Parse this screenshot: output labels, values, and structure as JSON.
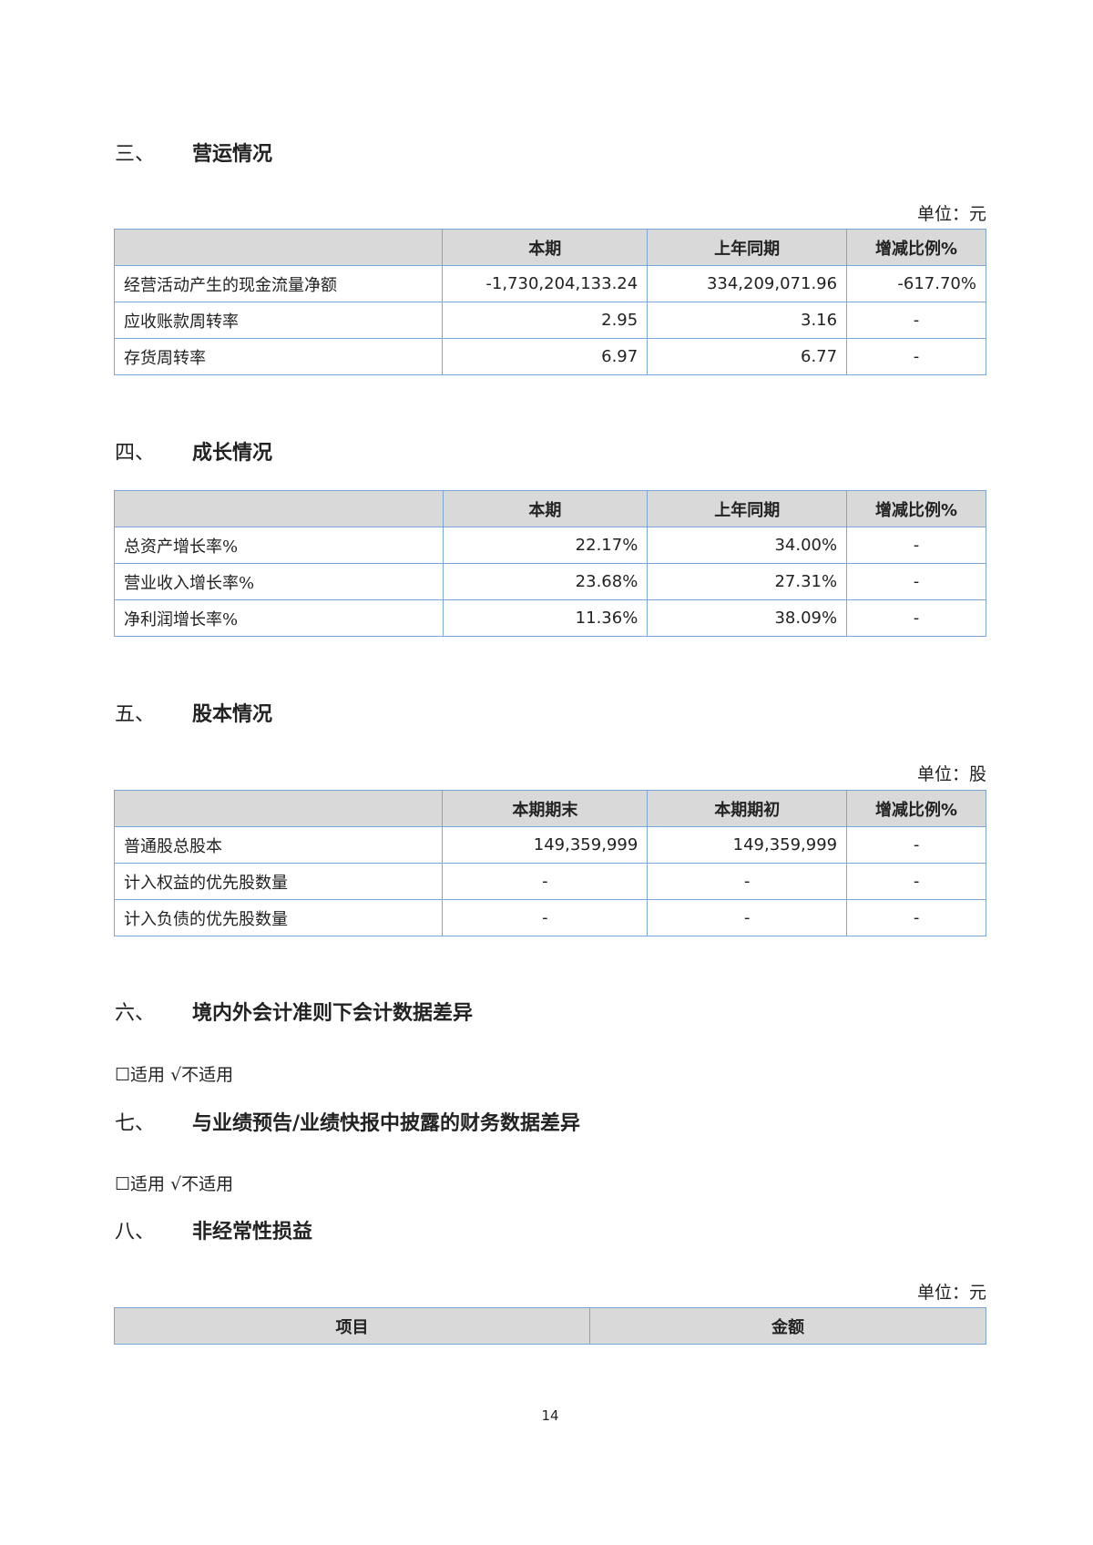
{
  "sections": [
    {
      "num": "三、",
      "title": "营运情况",
      "unit": "单位：元",
      "headers": [
        "",
        "本期",
        "上年同期",
        "增减比例%"
      ],
      "rows": [
        [
          "经营活动产生的现金流量净额",
          "-1,730,204,133.24",
          "334,209,071.96",
          "-617.70%"
        ],
        [
          "应收账款周转率",
          "2.95",
          "3.16",
          "-"
        ],
        [
          "存货周转率",
          "6.97",
          "6.77",
          "-"
        ]
      ]
    },
    {
      "num": "四、",
      "title": "成长情况",
      "headers": [
        "",
        "本期",
        "上年同期",
        "增减比例%"
      ],
      "rows": [
        [
          "总资产增长率%",
          "22.17%",
          "34.00%",
          "-"
        ],
        [
          "营业收入增长率%",
          "23.68%",
          "27.31%",
          "-"
        ],
        [
          "净利润增长率%",
          "11.36%",
          "38.09%",
          "-"
        ]
      ]
    },
    {
      "num": "五、",
      "title": "股本情况",
      "unit": "单位：股",
      "headers": [
        "",
        "本期期末",
        "本期期初",
        "增减比例%"
      ],
      "rows": [
        [
          "普通股总股本",
          "149,359,999",
          "149,359,999",
          "-"
        ],
        [
          "计入权益的优先股数量",
          "-",
          "-",
          "-"
        ],
        [
          "计入负债的优先股数量",
          "-",
          "-",
          "-"
        ]
      ]
    },
    {
      "num": "六、",
      "title": "境内外会计准则下会计数据差异",
      "applicability": "☐适用 √不适用"
    },
    {
      "num": "七、",
      "title": "与业绩预告/业绩快报中披露的财务数据差异",
      "applicability": "☐适用 √不适用"
    },
    {
      "num": "八、",
      "title": "非经常性损益",
      "unit": "单位：元",
      "headers": [
        "项目",
        "金额"
      ]
    }
  ],
  "page_number": "14",
  "colors": {
    "table_border": "#7aa7d8",
    "header_bg": "#d9d9d9"
  }
}
